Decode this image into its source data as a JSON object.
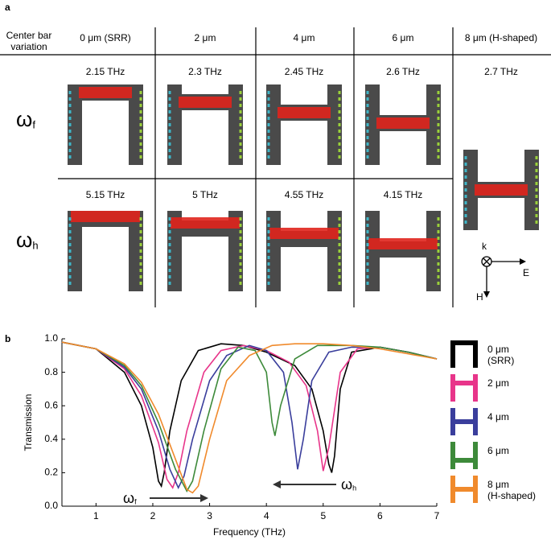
{
  "panel_a": {
    "label": "a",
    "header": {
      "row_title": "Center bar\nvariation",
      "columns": [
        "0 μm (SRR)",
        "2 μm",
        "4 μm",
        "6 μm",
        "8 μm (H-shaped)"
      ]
    },
    "rows": [
      {
        "symbol": "ω",
        "subscript": "f",
        "frequencies": [
          "2.15 THz",
          "2.3 THz",
          "2.45 THz",
          "2.6 THz",
          "2.7 THz"
        ]
      },
      {
        "symbol": "ω",
        "subscript": "h",
        "frequencies": [
          "5.15 THz",
          "5 THz",
          "4.55 THz",
          "4.15 THz"
        ]
      }
    ],
    "axes": {
      "k": "k",
      "E": "E",
      "H": "H"
    }
  },
  "chart_data": {
    "type": "line",
    "label": "b",
    "xlabel": "Frequency (THz)",
    "ylabel": "Transmission",
    "xlim": [
      0.4,
      7
    ],
    "xticks": [
      1,
      2,
      3,
      4,
      5,
      6,
      7
    ],
    "ylim": [
      0,
      1.0
    ],
    "yticks": [
      {
        "value": 0,
        "label": "0.0"
      },
      0.2,
      0.4,
      0.6,
      0.8,
      {
        "value": 1.0,
        "label": "1.0"
      }
    ],
    "series": [
      {
        "name": "0 μm\n(SRR)",
        "color": "#000000",
        "x": [
          0.4,
          1,
          1.5,
          1.8,
          2,
          2.1,
          2.15,
          2.2,
          2.3,
          2.5,
          2.8,
          3.2,
          3.6,
          4,
          4.5,
          4.8,
          5,
          5.1,
          5.15,
          5.2,
          5.3,
          5.5,
          6,
          6.5,
          7
        ],
        "values": [
          0.98,
          0.94,
          0.8,
          0.6,
          0.35,
          0.15,
          0.12,
          0.2,
          0.45,
          0.75,
          0.93,
          0.97,
          0.96,
          0.92,
          0.84,
          0.7,
          0.45,
          0.25,
          0.2,
          0.3,
          0.7,
          0.92,
          0.95,
          0.92,
          0.88
        ]
      },
      {
        "name": "2 μm",
        "color": "#e8358a",
        "x": [
          0.4,
          1,
          1.5,
          1.8,
          2.1,
          2.25,
          2.35,
          2.45,
          2.6,
          2.9,
          3.2,
          3.6,
          4,
          4.4,
          4.7,
          4.9,
          5,
          5.1,
          5.3,
          5.6,
          6,
          6.5,
          7
        ],
        "values": [
          0.98,
          0.94,
          0.82,
          0.66,
          0.38,
          0.16,
          0.11,
          0.2,
          0.45,
          0.8,
          0.93,
          0.96,
          0.93,
          0.86,
          0.72,
          0.45,
          0.21,
          0.35,
          0.8,
          0.94,
          0.95,
          0.92,
          0.88
        ]
      },
      {
        "name": "4 μm",
        "color": "#3a3e9c",
        "x": [
          0.4,
          1,
          1.5,
          1.8,
          2.1,
          2.3,
          2.45,
          2.55,
          2.7,
          3,
          3.3,
          3.7,
          4,
          4.3,
          4.45,
          4.55,
          4.65,
          4.8,
          5.1,
          5.5,
          6,
          6.5,
          7
        ],
        "values": [
          0.98,
          0.94,
          0.83,
          0.7,
          0.45,
          0.22,
          0.11,
          0.18,
          0.4,
          0.75,
          0.9,
          0.96,
          0.93,
          0.8,
          0.5,
          0.22,
          0.4,
          0.75,
          0.92,
          0.95,
          0.95,
          0.92,
          0.88
        ]
      },
      {
        "name": "6 μm",
        "color": "#3d8a3a",
        "x": [
          0.4,
          1,
          1.5,
          1.8,
          2.1,
          2.4,
          2.6,
          2.7,
          2.9,
          3.2,
          3.5,
          3.8,
          4,
          4.1,
          4.15,
          4.25,
          4.5,
          4.9,
          5.5,
          6,
          6.5,
          7
        ],
        "values": [
          0.98,
          0.94,
          0.84,
          0.72,
          0.5,
          0.22,
          0.09,
          0.15,
          0.45,
          0.82,
          0.95,
          0.93,
          0.8,
          0.5,
          0.42,
          0.6,
          0.88,
          0.96,
          0.96,
          0.95,
          0.92,
          0.88
        ]
      },
      {
        "name": "8 μm\n(H-shaped)",
        "color": "#f08a2c",
        "x": [
          0.4,
          1,
          1.5,
          1.8,
          2.1,
          2.4,
          2.6,
          2.7,
          2.8,
          3,
          3.3,
          3.7,
          4.1,
          4.5,
          5,
          5.5,
          6,
          6.5,
          7
        ],
        "values": [
          0.98,
          0.94,
          0.85,
          0.74,
          0.55,
          0.28,
          0.1,
          0.08,
          0.12,
          0.4,
          0.75,
          0.9,
          0.96,
          0.97,
          0.97,
          0.96,
          0.94,
          0.91,
          0.88
        ]
      }
    ],
    "annotations": [
      {
        "symbol": "ω",
        "subscript": "f"
      },
      {
        "symbol": "ω",
        "subscript": "h"
      }
    ]
  }
}
